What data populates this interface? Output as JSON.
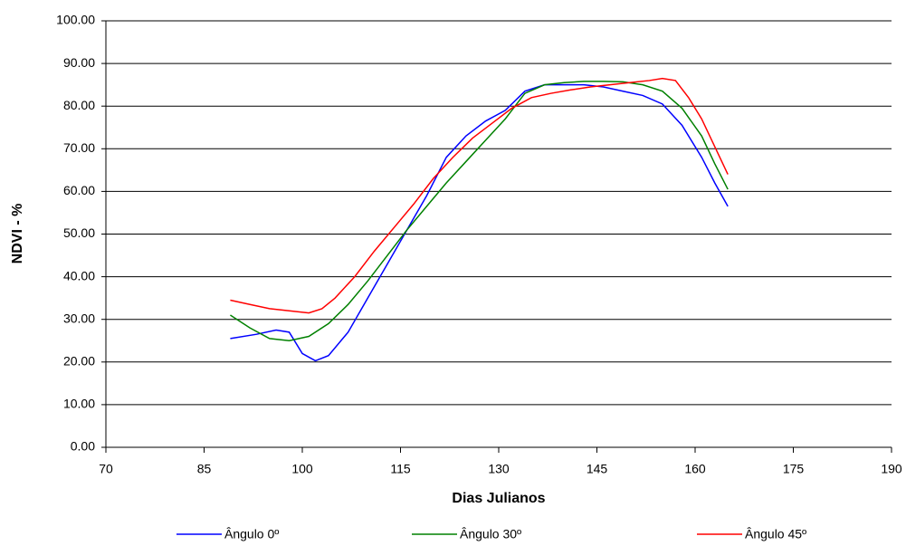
{
  "chart_data": {
    "type": "line",
    "xlabel": "Dias Julianos",
    "ylabel": "NDVI - %",
    "xlim": [
      70,
      190
    ],
    "xticks": [
      70,
      85,
      100,
      115,
      130,
      145,
      160,
      175,
      190
    ],
    "ylim": [
      0,
      100
    ],
    "yticks": [
      {
        "value": 0,
        "label": "0.00"
      },
      {
        "value": 10,
        "label": "10.00"
      },
      {
        "value": 20,
        "label": "20.00"
      },
      {
        "value": 30,
        "label": "30.00"
      },
      {
        "value": 40,
        "label": "40.00"
      },
      {
        "value": 50,
        "label": "50.00"
      },
      {
        "value": 60,
        "label": "60.00"
      },
      {
        "value": 70,
        "label": "70.00"
      },
      {
        "value": 80,
        "label": "80.00"
      },
      {
        "value": 90,
        "label": "90.00"
      },
      {
        "value": 100,
        "label": "100.00"
      }
    ],
    "grid": true,
    "legend": "bottom",
    "series": [
      {
        "name": "Ângulo 0º",
        "color": "#0000ff",
        "x": [
          89,
          93,
          96,
          98,
          100,
          102,
          104,
          107,
          110,
          113,
          116,
          119,
          122,
          125,
          128,
          131,
          134,
          137,
          140,
          143,
          146,
          149,
          152,
          155,
          158,
          161,
          163,
          165
        ],
        "values": [
          25.5,
          26.5,
          27.5,
          27,
          22,
          20.3,
          21.5,
          27,
          35,
          43,
          51,
          59,
          68,
          73,
          76.5,
          79,
          83.5,
          85,
          85,
          85,
          84.5,
          83.5,
          82.5,
          80.5,
          75.5,
          68,
          62,
          56.5
        ]
      },
      {
        "name": "Ângulo 30º",
        "color": "#008000",
        "x": [
          89,
          92,
          95,
          98,
          101,
          104,
          107,
          110,
          113,
          116,
          119,
          122,
          125,
          128,
          131,
          134,
          137,
          140,
          143,
          146,
          149,
          152,
          155,
          158,
          161,
          163,
          165
        ],
        "values": [
          31,
          28,
          25.5,
          25,
          26,
          29,
          33.5,
          39,
          45,
          51,
          56.5,
          62,
          67,
          72,
          77,
          83,
          85,
          85.5,
          85.8,
          85.8,
          85.7,
          85,
          83.5,
          79.5,
          73,
          66.5,
          60.5
        ]
      },
      {
        "name": "Ângulo 45º",
        "color": "#ff0000",
        "x": [
          89,
          92,
          95,
          98,
          101,
          103,
          105,
          108,
          111,
          114,
          117,
          120,
          123,
          126,
          129,
          132,
          135,
          138,
          141,
          144,
          147,
          150,
          153,
          155,
          157,
          159,
          161,
          163,
          165
        ],
        "values": [
          34.5,
          33.5,
          32.5,
          32,
          31.5,
          32.5,
          35,
          40,
          46,
          51.5,
          57,
          63,
          68,
          72.5,
          76,
          79.5,
          82,
          83,
          83.8,
          84.5,
          85,
          85.5,
          86,
          86.5,
          86,
          82,
          77,
          70.5,
          64
        ]
      }
    ]
  }
}
